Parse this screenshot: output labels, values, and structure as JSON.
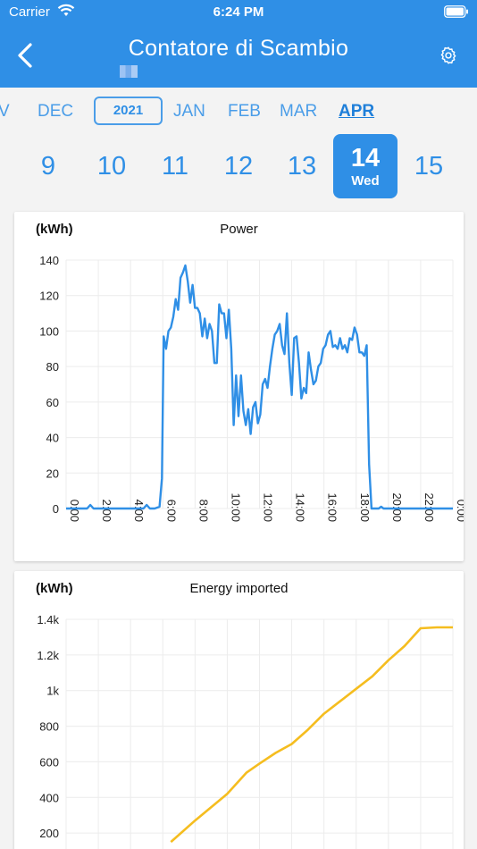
{
  "status_bar": {
    "carrier": "Carrier",
    "time": "6:24 PM"
  },
  "header": {
    "title": "Contatore di Scambio"
  },
  "months": {
    "prev_partial": "V",
    "items": [
      "DEC",
      "JAN",
      "FEB",
      "MAR",
      "APR"
    ],
    "active": "APR",
    "year": "2021"
  },
  "days": {
    "items": [
      "9",
      "10",
      "11",
      "12",
      "13",
      "14",
      "15"
    ],
    "selected": "14",
    "selected_weekday": "Wed"
  },
  "colors": {
    "header": "#2f8fe6",
    "power_line": "#2f8fe6",
    "energy_line": "#f5bd1f",
    "grid": "#ececec"
  },
  "chart_data": [
    {
      "type": "line",
      "title": "Power",
      "ylabel": "(kWh)",
      "ylim": [
        0,
        140
      ],
      "yticks": [
        "0",
        "20",
        "40",
        "60",
        "80",
        "100",
        "120",
        "140"
      ],
      "xlim": [
        0,
        24
      ],
      "xticks": [
        "0:00",
        "2:00",
        "4:00",
        "6:00",
        "8:00",
        "10:00",
        "12:00",
        "14:00",
        "16:00",
        "18:00",
        "20:00",
        "22:00",
        "0:00"
      ],
      "grid": true,
      "series": [
        {
          "x": [
            0,
            1.3,
            1.5,
            1.7,
            2,
            3,
            4,
            4.8,
            5,
            5.2,
            5.5,
            5.8,
            5.95,
            6.05,
            6.2,
            6.35,
            6.5,
            6.65,
            6.8,
            6.95,
            7.1,
            7.25,
            7.4,
            7.55,
            7.7,
            7.85,
            8,
            8.15,
            8.3,
            8.45,
            8.6,
            8.75,
            8.9,
            9.05,
            9.2,
            9.35,
            9.5,
            9.65,
            9.8,
            9.95,
            10.1,
            10.25,
            10.4,
            10.55,
            10.7,
            10.85,
            11,
            11.15,
            11.3,
            11.45,
            11.6,
            11.75,
            11.9,
            12.05,
            12.2,
            12.35,
            12.5,
            12.65,
            12.8,
            12.95,
            13.1,
            13.25,
            13.4,
            13.55,
            13.7,
            13.85,
            14,
            14.15,
            14.3,
            14.45,
            14.6,
            14.75,
            14.9,
            15.05,
            15.2,
            15.35,
            15.5,
            15.65,
            15.8,
            15.95,
            16.1,
            16.25,
            16.4,
            16.55,
            16.7,
            16.85,
            17,
            17.15,
            17.3,
            17.45,
            17.6,
            17.75,
            17.9,
            18.05,
            18.2,
            18.35,
            18.5,
            18.65,
            18.8,
            18.95,
            19.1,
            19.25,
            19.4,
            19.55,
            19.7,
            19.85,
            20,
            20.15,
            20.3,
            20.45,
            20.6,
            20.75,
            20.9,
            21.05,
            21.2,
            21.5,
            22,
            22.3,
            22.5,
            23,
            24
          ],
          "y": [
            0,
            0,
            2,
            0,
            0,
            0,
            0,
            0,
            2,
            0,
            0,
            1,
            17,
            97,
            90,
            100,
            102,
            108,
            118,
            112,
            130,
            133,
            137,
            128,
            116,
            126,
            113,
            113,
            110,
            97,
            107,
            96,
            104,
            100,
            82,
            82,
            115,
            110,
            110,
            96,
            112,
            90,
            47,
            75,
            52,
            75,
            55,
            47,
            56,
            42,
            57,
            60,
            48,
            53,
            70,
            73,
            68,
            80,
            90,
            98,
            100,
            104,
            92,
            87,
            110,
            82,
            64,
            96,
            97,
            82,
            62,
            68,
            65,
            88,
            78,
            70,
            72,
            80,
            82,
            90,
            92,
            98,
            100,
            91,
            92,
            90,
            96,
            90,
            92,
            88,
            96,
            95,
            102,
            98,
            88,
            88,
            86,
            92,
            25,
            0,
            0,
            0,
            0,
            1,
            0,
            0,
            0,
            0,
            0,
            0,
            0,
            0,
            0,
            0,
            0,
            0,
            0,
            0,
            0,
            0,
            0
          ],
          "color": "#2f8fe6"
        }
      ]
    },
    {
      "type": "line",
      "title": "Energy imported",
      "ylabel": "(kWh)",
      "ylim": [
        0,
        1400
      ],
      "yticks": [
        "200",
        "400",
        "600",
        "800",
        "1k",
        "1.2k",
        "1.4k"
      ],
      "xlim": [
        0,
        24
      ],
      "grid": true,
      "series": [
        {
          "x": [
            6.5,
            8,
            10,
            11.2,
            12,
            13,
            14,
            15,
            16,
            17,
            18,
            19,
            20,
            21,
            22,
            23,
            24
          ],
          "y": [
            150,
            270,
            420,
            540,
            590,
            650,
            700,
            780,
            870,
            940,
            1010,
            1080,
            1170,
            1250,
            1350,
            1355,
            1355
          ],
          "color": "#f5bd1f"
        }
      ]
    }
  ]
}
